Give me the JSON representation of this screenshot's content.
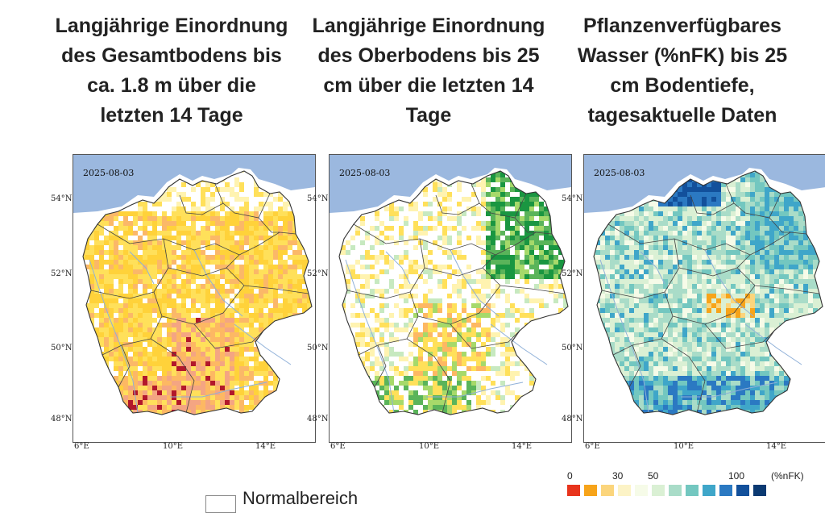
{
  "panels": [
    {
      "title_lines": [
        "Langjährige Einordnung",
        "des Gesamtbodens bis",
        "ca. 1.8 m über die",
        "letzten 14 Tage"
      ],
      "date": "2025-08-03",
      "palette": "dryness-total"
    },
    {
      "title_lines": [
        "Langjährige Einordnung",
        "des Oberbodens bis 25",
        "cm über die letzten 14",
        "Tage"
      ],
      "date": "2025-08-03",
      "palette": "dryness-top"
    },
    {
      "title_lines": [
        "Pflanzenverfügbares",
        "Wasser (%nFK) bis 25",
        "cm Bodentiefe,",
        "tagesaktuelle Daten"
      ],
      "date": "2025-08-03",
      "palette": "water-nfk"
    }
  ],
  "axes": {
    "lat_labels": [
      "54°N",
      "52°N",
      "50°N",
      "48°N"
    ],
    "lon_labels": [
      "6°E",
      "10°E",
      "14°E"
    ]
  },
  "legend_left": {
    "label": "Normalbereich"
  },
  "legend_right": {
    "ticks": [
      "0",
      "30",
      "50",
      "100"
    ],
    "unit": "(%nFK)",
    "colors": [
      "#e8341c",
      "#f7a41a",
      "#fbd57c",
      "#fcf3c6",
      "#f6fbe8",
      "#daf0d4",
      "#a9dcc8",
      "#73c7c0",
      "#3fa6c9",
      "#2b79c2",
      "#12509b",
      "#0b3a72"
    ]
  },
  "colors": {
    "sea": "#9bb8df",
    "land_border": "#333333"
  }
}
